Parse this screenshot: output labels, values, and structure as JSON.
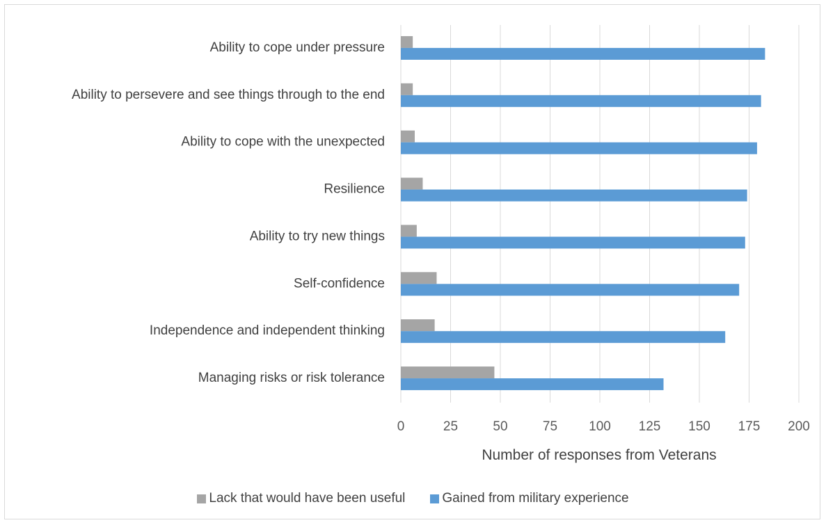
{
  "chart_data": {
    "type": "bar",
    "orientation": "horizontal",
    "categories": [
      "Ability to cope under pressure",
      "Ability to persevere and see things through to the end",
      "Ability to cope with the unexpected",
      "Resilience",
      "Ability to try new things",
      "Self-confidence",
      "Independence and independent thinking",
      "Managing risks or risk tolerance"
    ],
    "series": [
      {
        "name": "Lack that would have been useful",
        "color": "#a5a5a5",
        "values": [
          6,
          6,
          7,
          11,
          8,
          18,
          17,
          47
        ]
      },
      {
        "name": "Gained from military experience",
        "color": "#5b9bd5",
        "values": [
          183,
          181,
          179,
          174,
          173,
          170,
          163,
          132
        ]
      }
    ],
    "xlabel": "Number of responses from Veterans",
    "ylabel": "",
    "xlim": [
      0,
      200
    ],
    "xticks": [
      "0",
      "25",
      "50",
      "75",
      "100",
      "125",
      "150",
      "175",
      "200"
    ],
    "grid": true,
    "legend_position": "bottom"
  }
}
